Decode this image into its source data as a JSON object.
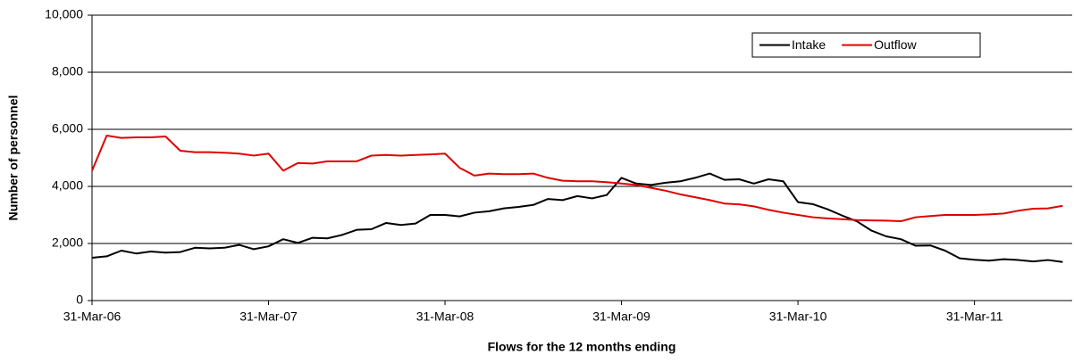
{
  "chart_data": {
    "type": "line",
    "x_label": "Flows for the 12 months ending",
    "y_label": "Number of personnel",
    "categories": [
      "31-Mar-06",
      null,
      null,
      null,
      null,
      null,
      null,
      null,
      null,
      null,
      null,
      null,
      "31-Mar-07",
      null,
      null,
      null,
      null,
      null,
      null,
      null,
      null,
      null,
      null,
      null,
      "31-Mar-08",
      null,
      null,
      null,
      null,
      null,
      null,
      null,
      null,
      null,
      null,
      null,
      "31-Mar-09",
      null,
      null,
      null,
      null,
      null,
      null,
      null,
      null,
      null,
      null,
      null,
      "31-Mar-10",
      null,
      null,
      null,
      null,
      null,
      null,
      null,
      null,
      null,
      null,
      null,
      "31-Mar-11",
      null,
      null,
      null,
      null,
      null,
      null
    ],
    "series": [
      {
        "name": "Intake",
        "color": "#000000",
        "values": [
          1500,
          1550,
          1750,
          1650,
          1720,
          1680,
          1700,
          1850,
          1830,
          1850,
          1950,
          1800,
          1900,
          2150,
          2020,
          2200,
          2180,
          2300,
          2480,
          2500,
          2720,
          2650,
          2700,
          3000,
          3000,
          2950,
          3080,
          3130,
          3230,
          3280,
          3350,
          3560,
          3520,
          3660,
          3580,
          3700,
          4300,
          4100,
          4050,
          4130,
          4180,
          4300,
          4450,
          4230,
          4250,
          4100,
          4250,
          4180,
          3450,
          3380,
          3200,
          2980,
          2780,
          2450,
          2250,
          2150,
          1920,
          1930,
          1750,
          1480,
          1430,
          1400,
          1450,
          1420,
          1370,
          1420,
          1350
        ]
      },
      {
        "name": "Outflow",
        "color": "#e00000",
        "values": [
          4550,
          5780,
          5700,
          5720,
          5720,
          5750,
          5250,
          5200,
          5200,
          5180,
          5150,
          5080,
          5150,
          4550,
          4820,
          4800,
          4880,
          4880,
          4880,
          5080,
          5100,
          5080,
          5100,
          5120,
          5150,
          4650,
          4380,
          4450,
          4430,
          4430,
          4450,
          4300,
          4200,
          4180,
          4180,
          4150,
          4100,
          4050,
          3950,
          3850,
          3720,
          3620,
          3520,
          3400,
          3370,
          3300,
          3180,
          3080,
          3000,
          2920,
          2880,
          2850,
          2820,
          2810,
          2800,
          2780,
          2920,
          2960,
          3000,
          3000,
          3000,
          3020,
          3050,
          3150,
          3220,
          3230,
          3320
        ]
      }
    ],
    "ylim": [
      0,
      10000
    ],
    "yticks": [
      0,
      {
        "value": 2000,
        "label": "2,000"
      },
      {
        "value": 4000,
        "label": "4,000"
      },
      {
        "value": 6000,
        "label": "6,000"
      },
      {
        "value": 8000,
        "label": "8,000"
      },
      {
        "value": 10000,
        "label": "10,000"
      }
    ],
    "grid": true,
    "legend": "top-right"
  }
}
